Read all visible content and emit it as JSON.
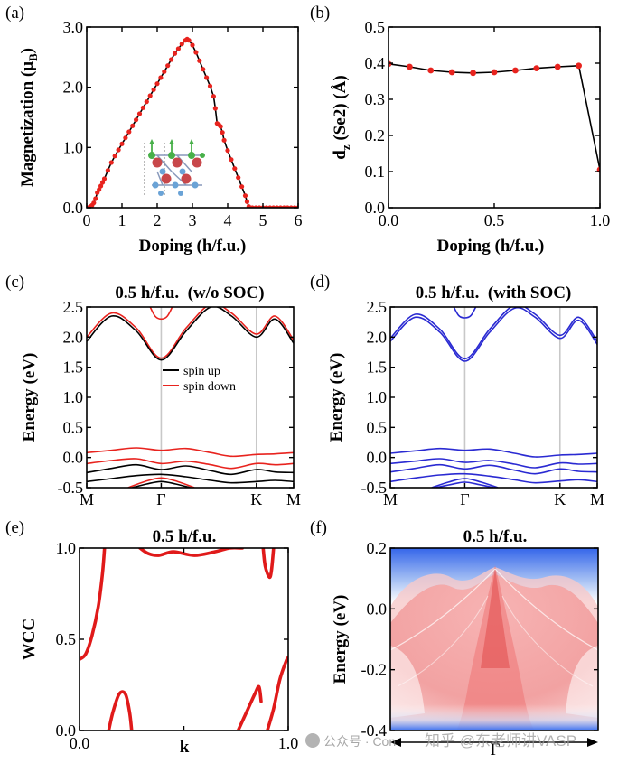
{
  "figure": {
    "watermark_left": "公众号 · Con",
    "watermark_right": "知乎 @东老师讲VASP"
  },
  "chart_data": [
    {
      "id": "a",
      "panel_label": "(a)",
      "type": "line",
      "xlabel": "Doping (h/f.u.)",
      "ylabel": "Magnetization (μ",
      "ylabel_sub": "B",
      "ylabel_tail": ")",
      "xlim": [
        0,
        6
      ],
      "ylim": [
        0,
        3
      ],
      "xticks": [
        0,
        1,
        2,
        3,
        4,
        5,
        6
      ],
      "yticks": [
        0.0,
        1.0,
        2.0,
        3.0
      ],
      "ytick_labels": [
        "0.0",
        "1.0",
        "2.0",
        "3.0"
      ],
      "line_color": "#000000",
      "marker_color": "#e8231e",
      "series": [
        {
          "name": "magnetization",
          "x": [
            0.0,
            0.05,
            0.1,
            0.15,
            0.2,
            0.25,
            0.3,
            0.35,
            0.4,
            0.45,
            0.5,
            0.6,
            0.7,
            0.8,
            0.9,
            1.0,
            1.1,
            1.2,
            1.3,
            1.4,
            1.5,
            1.6,
            1.7,
            1.8,
            1.9,
            2.0,
            2.1,
            2.2,
            2.3,
            2.4,
            2.5,
            2.6,
            2.7,
            2.8,
            2.85,
            2.9,
            3.0,
            3.1,
            3.2,
            3.3,
            3.4,
            3.5,
            3.6,
            3.65,
            3.7,
            3.75,
            3.8,
            3.85,
            3.9,
            4.0,
            4.1,
            4.2,
            4.3,
            4.4,
            4.5,
            4.55,
            4.6,
            4.7,
            4.8,
            4.9,
            5.0,
            5.1,
            5.2,
            5.3,
            5.4,
            5.5,
            5.6,
            5.7,
            5.8,
            5.9,
            6.0
          ],
          "y": [
            0.0,
            0.0,
            0.02,
            0.04,
            0.08,
            0.15,
            0.25,
            0.3,
            0.36,
            0.42,
            0.48,
            0.62,
            0.75,
            0.86,
            0.96,
            1.06,
            1.16,
            1.26,
            1.36,
            1.46,
            1.56,
            1.66,
            1.76,
            1.86,
            1.96,
            2.06,
            2.16,
            2.26,
            2.36,
            2.46,
            2.56,
            2.64,
            2.72,
            2.78,
            2.8,
            2.78,
            2.7,
            2.58,
            2.44,
            2.3,
            2.16,
            2.02,
            1.85,
            1.65,
            1.4,
            1.38,
            1.35,
            1.25,
            1.12,
            0.95,
            0.8,
            0.65,
            0.5,
            0.35,
            0.2,
            0.1,
            0.02,
            0.0,
            0.0,
            0.0,
            0.0,
            0.0,
            0.0,
            0.0,
            0.0,
            0.0,
            0.0,
            0.0,
            0.0,
            0.0,
            0.0
          ]
        }
      ]
    },
    {
      "id": "b",
      "panel_label": "(b)",
      "type": "line",
      "xlabel": "Doping (h/f.u.)",
      "ylabel": "d",
      "ylabel_sub": "z",
      "ylabel_tail": " (Se2) (Å)",
      "xlim": [
        0,
        1
      ],
      "ylim": [
        0,
        0.5
      ],
      "xticks": [
        0,
        0.5,
        1
      ],
      "xtick_labels": [
        "0.0",
        "0.5",
        "1.0"
      ],
      "yticks": [
        0.0,
        0.1,
        0.2,
        0.3,
        0.4,
        0.5
      ],
      "ytick_labels": [
        "0.0",
        "0.1",
        "0.2",
        "0.3",
        "0.4",
        "0.5"
      ],
      "line_color": "#000000",
      "marker_color": "#e8231e",
      "series": [
        {
          "name": "dz",
          "x": [
            0.0,
            0.1,
            0.2,
            0.3,
            0.4,
            0.5,
            0.6,
            0.7,
            0.8,
            0.9,
            1.0
          ],
          "y": [
            0.398,
            0.39,
            0.38,
            0.375,
            0.373,
            0.375,
            0.38,
            0.386,
            0.39,
            0.393,
            0.105
          ]
        }
      ]
    },
    {
      "id": "c",
      "panel_label": "(c)",
      "type": "line",
      "title": "0.5 h/f.u.  (w/o SOC)",
      "ylabel": "Energy (eV)",
      "xtick_labels": [
        "M",
        "Γ",
        "K",
        "M"
      ],
      "kpath_positions": [
        0,
        0.36,
        0.82,
        1
      ],
      "ylim": [
        -0.5,
        2.5
      ],
      "yticks": [
        -0.5,
        0.0,
        0.5,
        1.0,
        1.5,
        2.0,
        2.5
      ],
      "ytick_labels": [
        "-0.5",
        "0.0",
        "0.5",
        "1.0",
        "1.5",
        "2.0",
        "2.5"
      ],
      "legend": [
        {
          "label": "spin up",
          "color": "#000000"
        },
        {
          "label": "spin down",
          "color": "#e8231e"
        }
      ],
      "series": [
        {
          "name": "cond-down-1",
          "color": "#e8231e",
          "k": [
            0,
            0.12,
            0.24,
            0.36,
            0.48,
            0.6,
            0.7,
            0.82,
            0.91,
            1
          ],
          "E": [
            2.0,
            2.4,
            2.15,
            1.65,
            2.15,
            2.55,
            2.4,
            2.05,
            2.35,
            1.95
          ]
        },
        {
          "name": "cond-up-1",
          "color": "#000000",
          "k": [
            0,
            0.12,
            0.24,
            0.36,
            0.48,
            0.6,
            0.7,
            0.82,
            0.91,
            1
          ],
          "E": [
            1.93,
            2.35,
            2.1,
            1.62,
            2.1,
            2.5,
            2.35,
            2.0,
            2.3,
            1.9
          ]
        },
        {
          "name": "cond-down-2",
          "color": "#e8231e",
          "k": [
            0.3,
            0.33,
            0.36,
            0.39,
            0.42
          ],
          "E": [
            2.55,
            2.35,
            2.3,
            2.35,
            2.55
          ]
        },
        {
          "name": "val-down-1",
          "color": "#e8231e",
          "k": [
            0,
            0.12,
            0.24,
            0.36,
            0.48,
            0.6,
            0.7,
            0.82,
            0.91,
            1
          ],
          "E": [
            0.08,
            0.12,
            0.16,
            0.12,
            0.15,
            0.08,
            0.02,
            0.05,
            0.06,
            0.08
          ]
        },
        {
          "name": "val-down-2",
          "color": "#e8231e",
          "k": [
            0,
            0.12,
            0.24,
            0.36,
            0.48,
            0.6,
            0.7,
            0.82,
            0.91,
            1
          ],
          "E": [
            -0.1,
            -0.05,
            -0.02,
            -0.1,
            -0.06,
            -0.12,
            -0.18,
            -0.1,
            -0.12,
            -0.1
          ]
        },
        {
          "name": "val-up-1",
          "color": "#000000",
          "k": [
            0,
            0.12,
            0.24,
            0.36,
            0.48,
            0.6,
            0.7,
            0.82,
            0.91,
            1
          ],
          "E": [
            -0.25,
            -0.18,
            -0.12,
            -0.2,
            -0.14,
            -0.22,
            -0.28,
            -0.2,
            -0.24,
            -0.25
          ]
        },
        {
          "name": "val-up-2",
          "color": "#000000",
          "k": [
            0,
            0.12,
            0.24,
            0.36,
            0.48,
            0.6,
            0.7,
            0.82,
            0.91,
            1
          ],
          "E": [
            -0.4,
            -0.35,
            -0.3,
            -0.28,
            -0.32,
            -0.38,
            -0.42,
            -0.4,
            -0.38,
            -0.4
          ]
        },
        {
          "name": "val-down-3",
          "color": "#e8231e",
          "k": [
            0.2,
            0.28,
            0.36,
            0.44,
            0.52
          ],
          "E": [
            -0.5,
            -0.4,
            -0.34,
            -0.4,
            -0.5
          ]
        },
        {
          "name": "val-up-3",
          "color": "#000000",
          "k": [
            0.22,
            0.29,
            0.36,
            0.43,
            0.5
          ],
          "E": [
            -0.5,
            -0.44,
            -0.4,
            -0.44,
            -0.5
          ]
        }
      ]
    },
    {
      "id": "d",
      "panel_label": "(d)",
      "type": "line",
      "title": "0.5 h/f.u.  (with SOC)",
      "ylabel": "Energy (eV)",
      "xtick_labels": [
        "M",
        "Γ",
        "K",
        "M"
      ],
      "kpath_positions": [
        0,
        0.36,
        0.82,
        1
      ],
      "ylim": [
        -0.5,
        2.5
      ],
      "yticks": [
        -0.5,
        0.0,
        0.5,
        1.0,
        1.5,
        2.0,
        2.5
      ],
      "ytick_labels": [
        "-0.5",
        "0.0",
        "0.5",
        "1.0",
        "1.5",
        "2.0",
        "2.5"
      ],
      "series": [
        {
          "name": "cond-1",
          "color": "#2a2ad2",
          "k": [
            0,
            0.12,
            0.24,
            0.36,
            0.48,
            0.6,
            0.7,
            0.82,
            0.91,
            1
          ],
          "E": [
            1.98,
            2.38,
            2.13,
            1.64,
            2.13,
            2.53,
            2.38,
            2.03,
            2.33,
            1.93
          ]
        },
        {
          "name": "cond-2",
          "color": "#2a2ad2",
          "k": [
            0,
            0.12,
            0.24,
            0.36,
            0.48,
            0.6,
            0.7,
            0.82,
            0.91,
            1
          ],
          "E": [
            1.93,
            2.33,
            2.08,
            1.6,
            2.08,
            2.48,
            2.33,
            1.98,
            2.28,
            1.88
          ]
        },
        {
          "name": "cond-3",
          "color": "#2a2ad2",
          "k": [
            0.3,
            0.33,
            0.36,
            0.39,
            0.42
          ],
          "E": [
            2.55,
            2.36,
            2.32,
            2.36,
            2.55
          ]
        },
        {
          "name": "val-1",
          "color": "#2a2ad2",
          "k": [
            0,
            0.12,
            0.24,
            0.36,
            0.48,
            0.6,
            0.7,
            0.82,
            0.91,
            1
          ],
          "E": [
            0.07,
            0.11,
            0.15,
            0.12,
            0.14,
            0.07,
            0.01,
            0.04,
            0.05,
            0.07
          ]
        },
        {
          "name": "val-2",
          "color": "#2a2ad2",
          "k": [
            0,
            0.12,
            0.24,
            0.36,
            0.48,
            0.6,
            0.7,
            0.82,
            0.91,
            1
          ],
          "E": [
            -0.1,
            -0.06,
            -0.02,
            -0.08,
            -0.05,
            -0.11,
            -0.17,
            -0.09,
            -0.11,
            -0.1
          ]
        },
        {
          "name": "val-3",
          "color": "#2a2ad2",
          "k": [
            0,
            0.12,
            0.24,
            0.36,
            0.48,
            0.6,
            0.7,
            0.82,
            0.91,
            1
          ],
          "E": [
            -0.24,
            -0.18,
            -0.12,
            -0.19,
            -0.13,
            -0.21,
            -0.27,
            -0.19,
            -0.23,
            -0.24
          ]
        },
        {
          "name": "val-4",
          "color": "#2a2ad2",
          "k": [
            0,
            0.12,
            0.24,
            0.36,
            0.48,
            0.6,
            0.7,
            0.82,
            0.91,
            1
          ],
          "E": [
            -0.4,
            -0.34,
            -0.29,
            -0.27,
            -0.31,
            -0.37,
            -0.42,
            -0.39,
            -0.37,
            -0.4
          ]
        },
        {
          "name": "val-5",
          "color": "#2a2ad2",
          "k": [
            0.2,
            0.28,
            0.36,
            0.44,
            0.52
          ],
          "E": [
            -0.5,
            -0.41,
            -0.35,
            -0.41,
            -0.5
          ]
        },
        {
          "name": "val-6",
          "color": "#2a2ad2",
          "k": [
            0.22,
            0.29,
            0.36,
            0.43,
            0.5
          ],
          "E": [
            -0.5,
            -0.45,
            -0.41,
            -0.45,
            -0.5
          ]
        }
      ]
    },
    {
      "id": "e",
      "panel_label": "(e)",
      "type": "line",
      "title": "0.5 h/f.u.",
      "xlabel": "k",
      "ylabel": "WCC",
      "xlim": [
        0,
        1
      ],
      "ylim": [
        0,
        1
      ],
      "xticks": [
        0,
        0.5,
        1
      ],
      "xtick_labels": [
        "0.0",
        "",
        "1.0"
      ],
      "yticks": [
        0,
        0.5,
        1
      ],
      "ytick_labels": [
        "0.0",
        "0.5",
        "1.0"
      ],
      "series": [
        {
          "name": "wcc-1",
          "color": "#e01a1a",
          "x": [
            0.0,
            0.03,
            0.06,
            0.09,
            0.11,
            0.12
          ],
          "y": [
            0.39,
            0.42,
            0.52,
            0.68,
            0.86,
            1.0
          ]
        },
        {
          "name": "wcc-2",
          "color": "#e01a1a",
          "x": [
            0.14,
            0.16,
            0.19,
            0.22,
            0.24,
            0.25
          ],
          "y": [
            0.0,
            0.1,
            0.2,
            0.2,
            0.1,
            0.0
          ]
        },
        {
          "name": "wcc-3",
          "color": "#e01a1a",
          "x": [
            0.29,
            0.33,
            0.38,
            0.45,
            0.55,
            0.65,
            0.72,
            0.78
          ],
          "y": [
            1.0,
            0.97,
            0.96,
            0.98,
            0.96,
            0.98,
            1.0,
            1.0
          ]
        },
        {
          "name": "wcc-4",
          "color": "#e01a1a",
          "x": [
            0.76,
            0.8,
            0.84,
            0.86,
            0.87
          ],
          "y": [
            0.0,
            0.1,
            0.2,
            0.24,
            0.16
          ]
        },
        {
          "name": "wcc-5",
          "color": "#e01a1a",
          "x": [
            0.88,
            0.89,
            0.91,
            0.92,
            0.93
          ],
          "y": [
            1.0,
            0.9,
            0.84,
            0.88,
            1.0
          ]
        },
        {
          "name": "wcc-6",
          "color": "#e01a1a",
          "x": [
            0.9,
            0.93,
            0.96,
            0.99,
            1.0
          ],
          "y": [
            0.0,
            0.12,
            0.28,
            0.38,
            0.4
          ]
        }
      ]
    },
    {
      "id": "f",
      "panel_label": "(f)",
      "type": "heatmap",
      "title": "0.5 h/f.u.",
      "ylabel": "Energy (eV)",
      "xtick_labels": [
        "Γ"
      ],
      "ylim": [
        -0.4,
        0.2
      ],
      "yticks": [
        -0.4,
        -0.2,
        0.0,
        0.2
      ],
      "ytick_labels": [
        "-0.4",
        "-0.2",
        "0.0",
        "0.2"
      ],
      "colors": {
        "bulk": "#f29a9a",
        "bulk_dark": "#e85b5b",
        "gap": "#3b6ff0",
        "light": "#ffffff"
      },
      "surface_state_peak_energy": 0.15
    }
  ]
}
